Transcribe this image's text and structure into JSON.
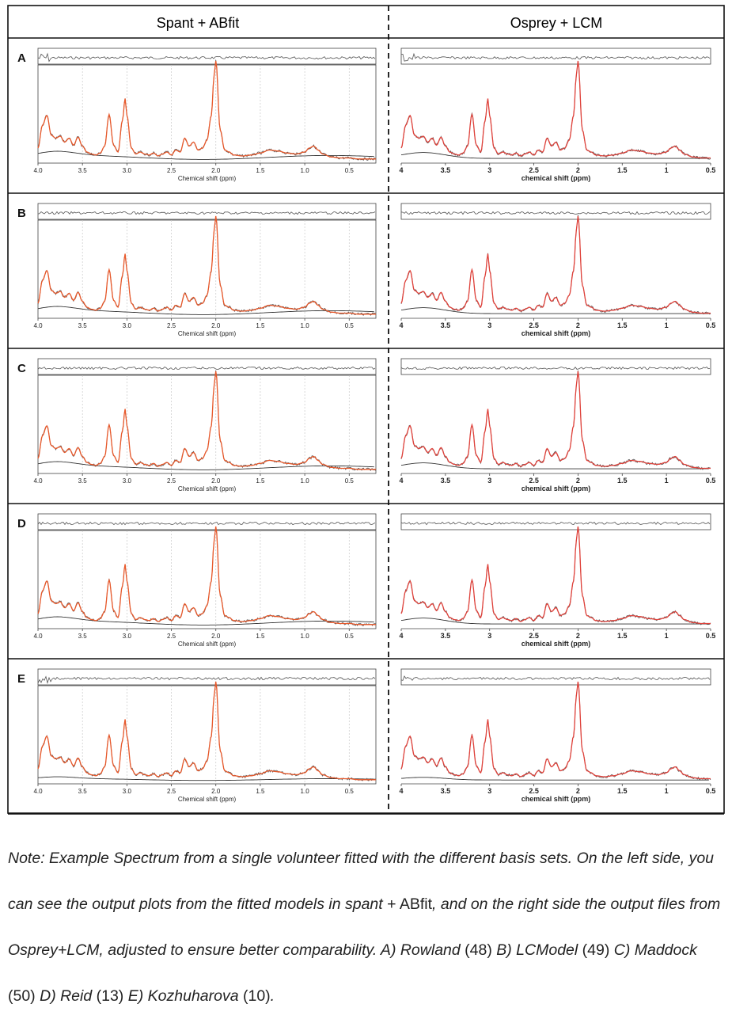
{
  "headers": {
    "left": "Spant + ABfit",
    "right": "Osprey + LCM"
  },
  "left_axis": {
    "label": "Chemical shift (ppm)",
    "ticks": [
      "4.0",
      "3.5",
      "3.0",
      "2.5",
      "2.0",
      "1.5",
      "1.0",
      "0.5"
    ]
  },
  "right_axis": {
    "label": "chemical shift (ppm)",
    "ticks": [
      "4",
      "3.5",
      "3",
      "2.5",
      "2",
      "1.5",
      "1",
      "0.5"
    ]
  },
  "colors": {
    "fit": "#e8582a",
    "fit_right": "#e0413a",
    "data": "#555555",
    "baseline": "#333333",
    "grid": "#c8c8c8"
  },
  "chart_data": {
    "type": "line",
    "x": [
      4.0,
      3.95,
      3.9,
      3.85,
      3.8,
      3.75,
      3.7,
      3.65,
      3.6,
      3.55,
      3.5,
      3.45,
      3.4,
      3.35,
      3.3,
      3.25,
      3.2,
      3.15,
      3.1,
      3.05,
      3.02,
      3.0,
      2.95,
      2.9,
      2.85,
      2.8,
      2.75,
      2.7,
      2.65,
      2.6,
      2.55,
      2.5,
      2.45,
      2.4,
      2.35,
      2.3,
      2.25,
      2.2,
      2.15,
      2.1,
      2.05,
      2.02,
      2.0,
      1.95,
      1.9,
      1.85,
      1.8,
      1.7,
      1.6,
      1.5,
      1.4,
      1.3,
      1.2,
      1.1,
      1.0,
      0.95,
      0.9,
      0.85,
      0.8,
      0.7,
      0.6,
      0.5,
      0.4,
      0.3,
      0.2
    ],
    "panels": [
      {
        "label": "A",
        "series": [
          {
            "values": [
              0.12,
              0.35,
              0.45,
              0.25,
              0.22,
              0.24,
              0.18,
              0.22,
              0.15,
              0.23,
              0.14,
              0.08,
              0.06,
              0.05,
              0.07,
              0.14,
              0.46,
              0.15,
              0.08,
              0.4,
              0.62,
              0.45,
              0.12,
              0.06,
              0.08,
              0.06,
              0.05,
              0.07,
              0.04,
              0.06,
              0.08,
              0.05,
              0.1,
              0.08,
              0.22,
              0.14,
              0.18,
              0.1,
              0.12,
              0.2,
              0.45,
              0.85,
              1.0,
              0.3,
              0.1,
              0.08,
              0.05,
              0.04,
              0.05,
              0.07,
              0.1,
              0.09,
              0.07,
              0.06,
              0.08,
              0.12,
              0.14,
              0.1,
              0.06,
              0.03,
              0.02,
              0.02,
              0.01,
              0.01,
              0.01
            ]
          }
        ]
      },
      {
        "label": "B",
        "series": [
          {
            "values": [
              0.12,
              0.35,
              0.45,
              0.25,
              0.22,
              0.24,
              0.18,
              0.22,
              0.15,
              0.23,
              0.14,
              0.08,
              0.06,
              0.05,
              0.07,
              0.14,
              0.46,
              0.15,
              0.08,
              0.4,
              0.62,
              0.45,
              0.12,
              0.06,
              0.08,
              0.06,
              0.05,
              0.07,
              0.04,
              0.06,
              0.08,
              0.05,
              0.1,
              0.08,
              0.22,
              0.14,
              0.18,
              0.1,
              0.12,
              0.2,
              0.45,
              0.85,
              1.0,
              0.3,
              0.1,
              0.08,
              0.05,
              0.04,
              0.05,
              0.07,
              0.1,
              0.09,
              0.07,
              0.06,
              0.08,
              0.12,
              0.14,
              0.1,
              0.06,
              0.03,
              0.02,
              0.02,
              0.01,
              0.01,
              0.01
            ]
          }
        ]
      },
      {
        "label": "C",
        "series": [
          {
            "values": [
              0.12,
              0.35,
              0.45,
              0.25,
              0.22,
              0.24,
              0.18,
              0.22,
              0.15,
              0.23,
              0.14,
              0.08,
              0.06,
              0.05,
              0.07,
              0.14,
              0.46,
              0.15,
              0.08,
              0.4,
              0.62,
              0.45,
              0.12,
              0.06,
              0.08,
              0.06,
              0.05,
              0.07,
              0.04,
              0.06,
              0.08,
              0.05,
              0.1,
              0.08,
              0.22,
              0.14,
              0.18,
              0.1,
              0.12,
              0.2,
              0.45,
              0.85,
              1.0,
              0.3,
              0.1,
              0.08,
              0.05,
              0.04,
              0.05,
              0.07,
              0.1,
              0.09,
              0.07,
              0.06,
              0.08,
              0.12,
              0.14,
              0.1,
              0.06,
              0.03,
              0.02,
              0.02,
              0.01,
              0.01,
              0.01
            ]
          }
        ]
      },
      {
        "label": "D",
        "series": [
          {
            "values": [
              0.12,
              0.35,
              0.45,
              0.25,
              0.22,
              0.24,
              0.18,
              0.22,
              0.15,
              0.23,
              0.14,
              0.08,
              0.06,
              0.05,
              0.07,
              0.14,
              0.46,
              0.15,
              0.08,
              0.4,
              0.62,
              0.45,
              0.12,
              0.06,
              0.08,
              0.06,
              0.05,
              0.07,
              0.04,
              0.06,
              0.08,
              0.05,
              0.1,
              0.08,
              0.22,
              0.14,
              0.18,
              0.1,
              0.12,
              0.2,
              0.45,
              0.85,
              1.0,
              0.3,
              0.1,
              0.08,
              0.05,
              0.04,
              0.05,
              0.07,
              0.1,
              0.09,
              0.07,
              0.06,
              0.08,
              0.12,
              0.14,
              0.1,
              0.06,
              0.03,
              0.02,
              0.02,
              0.01,
              0.01,
              0.01
            ]
          }
        ]
      },
      {
        "label": "E",
        "series": [
          {
            "values": [
              0.12,
              0.35,
              0.45,
              0.25,
              0.22,
              0.24,
              0.18,
              0.22,
              0.15,
              0.23,
              0.14,
              0.08,
              0.06,
              0.05,
              0.07,
              0.14,
              0.46,
              0.15,
              0.08,
              0.4,
              0.62,
              0.45,
              0.12,
              0.06,
              0.08,
              0.06,
              0.05,
              0.07,
              0.04,
              0.06,
              0.08,
              0.05,
              0.1,
              0.08,
              0.22,
              0.14,
              0.18,
              0.1,
              0.12,
              0.2,
              0.45,
              0.85,
              1.0,
              0.3,
              0.1,
              0.08,
              0.05,
              0.04,
              0.05,
              0.07,
              0.1,
              0.09,
              0.07,
              0.06,
              0.08,
              0.12,
              0.14,
              0.1,
              0.06,
              0.03,
              0.02,
              0.02,
              0.01,
              0.01,
              0.01
            ]
          }
        ]
      }
    ],
    "left_xlim": [
      4.0,
      0.2
    ],
    "right_xlim": [
      4.0,
      0.5
    ]
  },
  "caption": {
    "parts": [
      {
        "t": "Note: Example Spectrum from a single volunteer fitted with the different basis sets. On the left side, you can see the output plots from the fitted models in spant ",
        "s": "it"
      },
      {
        "t": "+ ABfit",
        "s": "up"
      },
      {
        "t": ", and on the right side the output files from Osprey+LCM, adjusted to ensure better comparability. A) Rowland ",
        "s": "it"
      },
      {
        "t": "(48)",
        "s": "up"
      },
      {
        "t": " B) LCModel ",
        "s": "it"
      },
      {
        "t": "(49)",
        "s": "up"
      },
      {
        "t": " C) Maddock ",
        "s": "it"
      },
      {
        "t": "(50)",
        "s": "up"
      },
      {
        "t": " D) Reid ",
        "s": "it"
      },
      {
        "t": "(13)",
        "s": "up"
      },
      {
        "t": " E) Kozhuharova ",
        "s": "it"
      },
      {
        "t": "(10)",
        "s": "up"
      },
      {
        "t": ".",
        "s": "it"
      }
    ]
  }
}
